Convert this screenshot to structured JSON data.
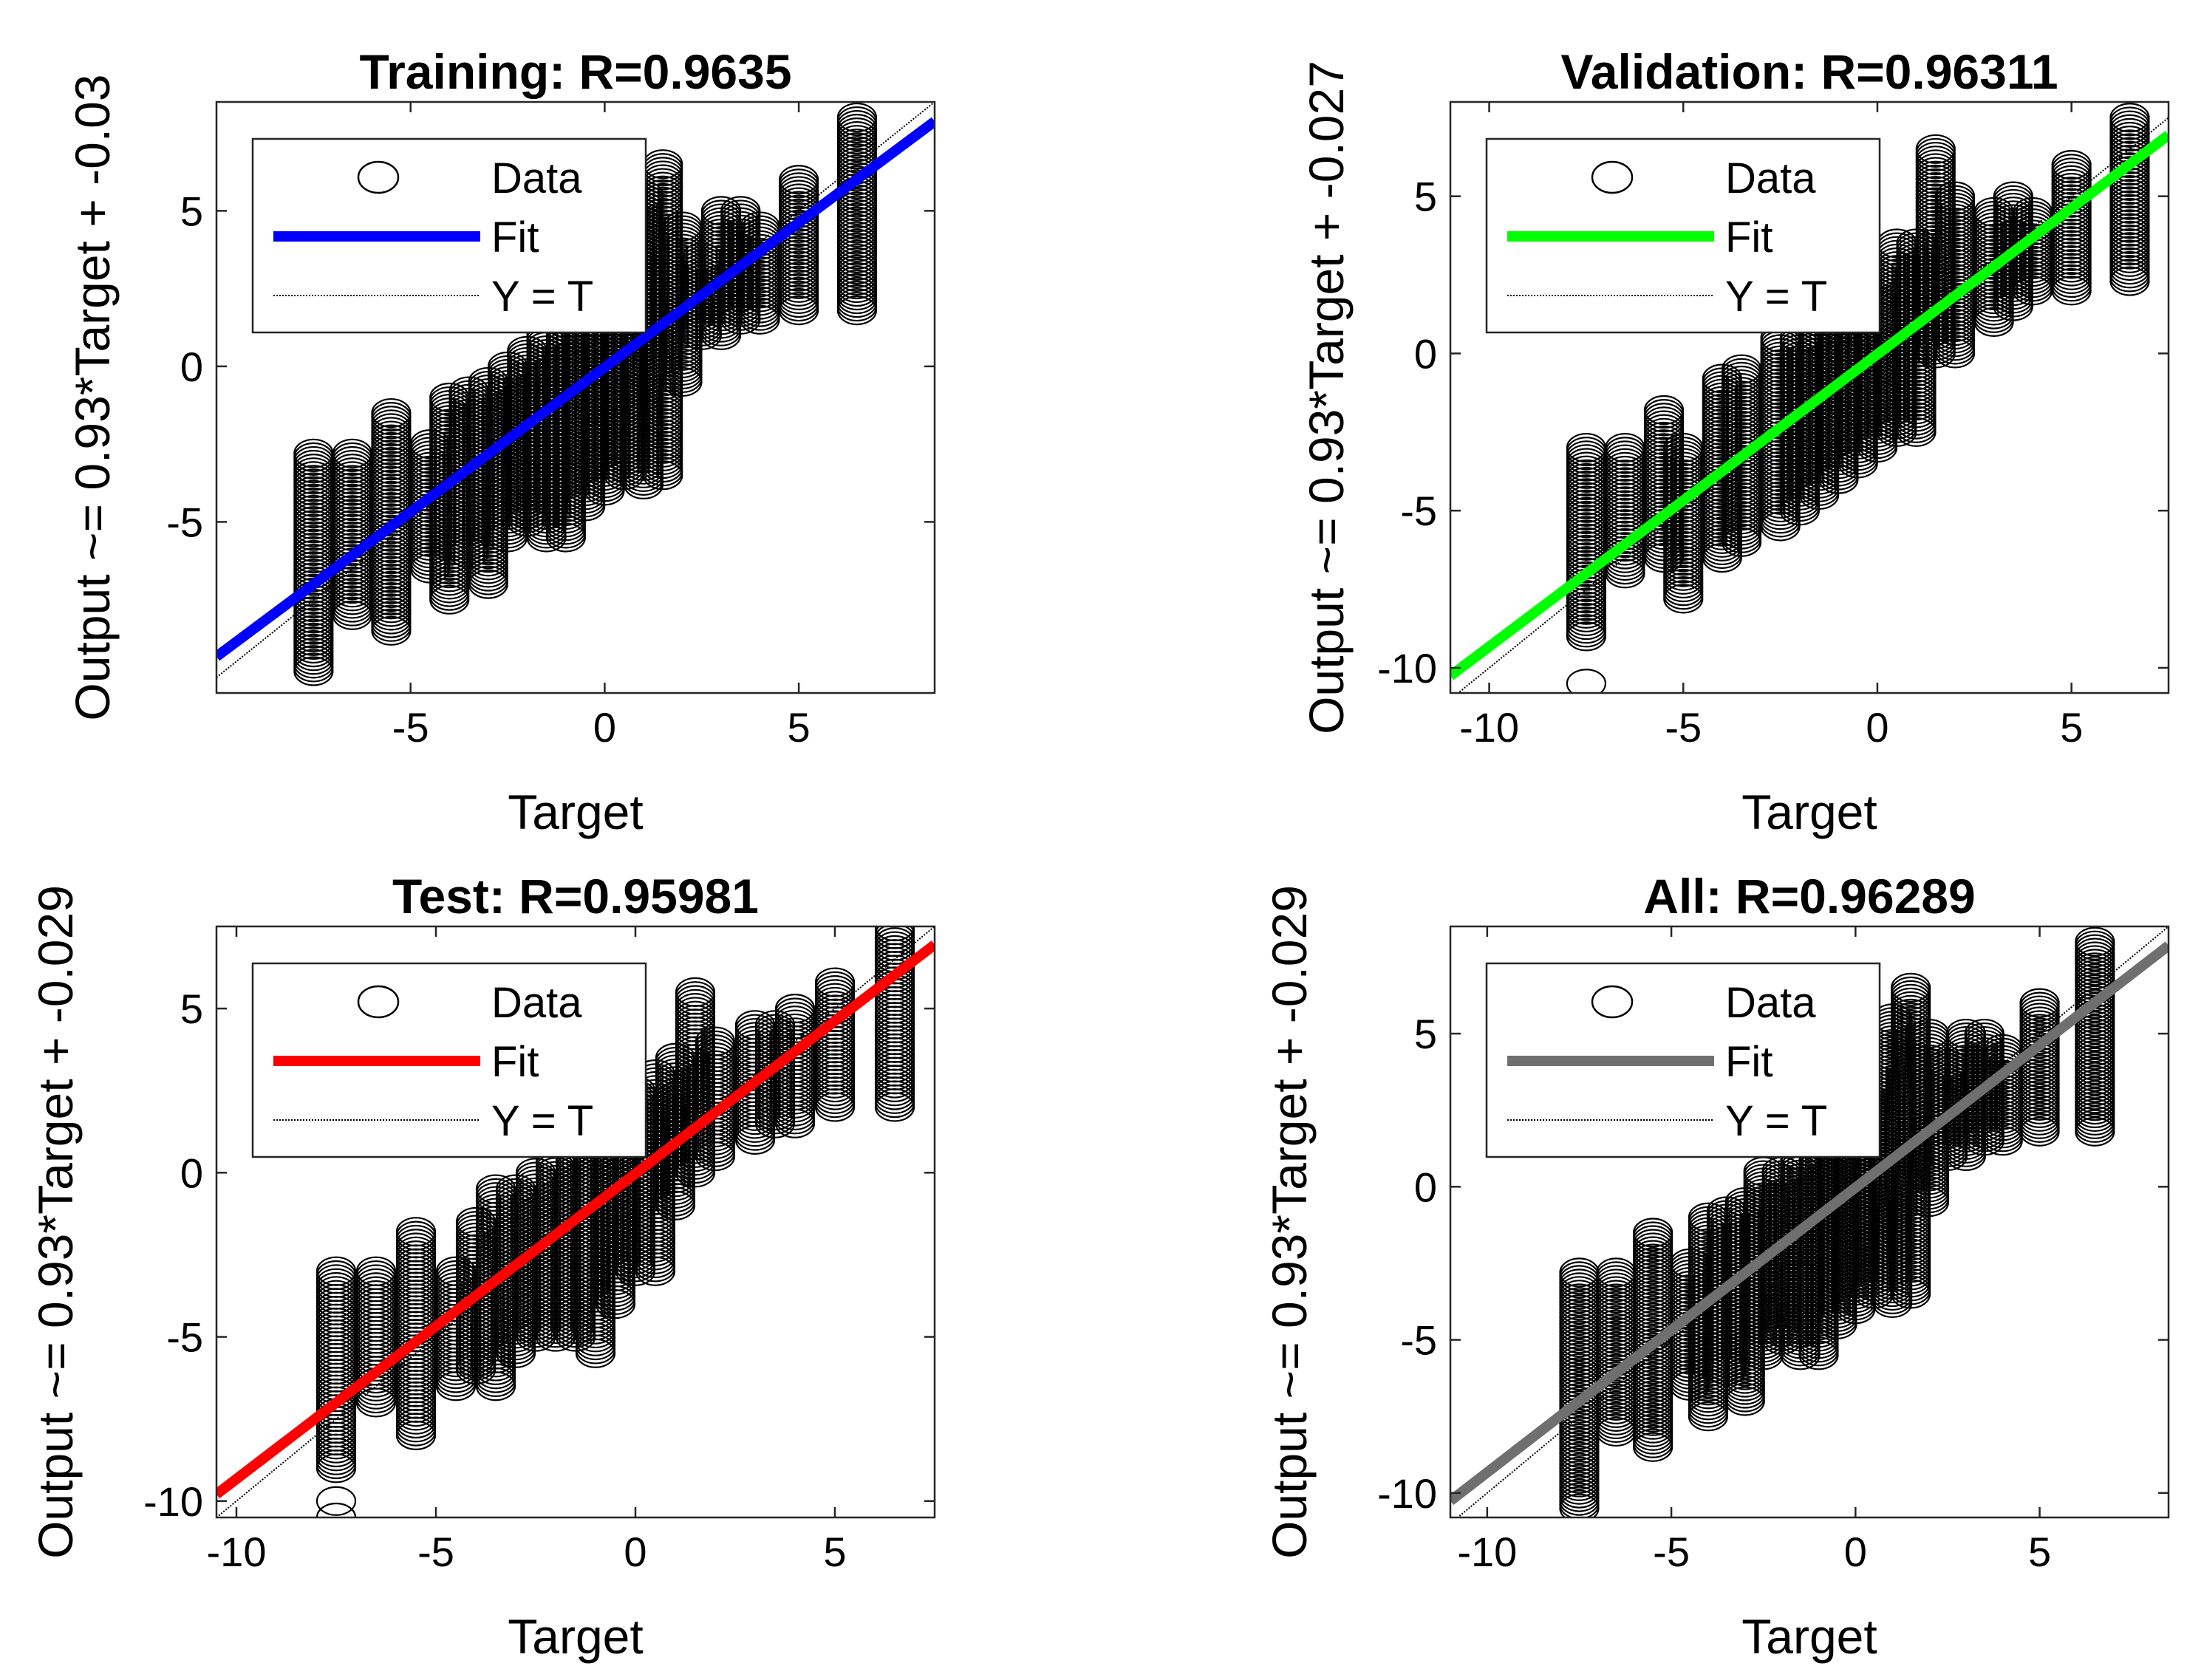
{
  "chart_data": [
    {
      "type": "scatter",
      "title": "Training: R=0.9635",
      "xlabel": "Target",
      "ylabel": "Output ~= 0.93*Target + -0.03",
      "xlim": [
        -10,
        8.5
      ],
      "ylim": [
        -10.5,
        8.5
      ],
      "xticks": [
        -5,
        0,
        5
      ],
      "xtick_labels": [
        "-5",
        "0",
        "5"
      ],
      "yticks": [
        -5,
        0,
        5
      ],
      "ytick_labels": [
        "-5",
        "0",
        "5"
      ],
      "fit": {
        "slope": 0.93,
        "intercept": -0.03,
        "color": "#0000ff"
      },
      "data_columns": [
        {
          "x": -7.5,
          "ymin": -9.8,
          "ymax": -2.8
        },
        {
          "x": -6.5,
          "ymin": -8.0,
          "ymax": -2.8
        },
        {
          "x": -5.5,
          "ymin": -8.5,
          "ymax": -1.5
        },
        {
          "x": -4.5,
          "ymin": -6.5,
          "ymax": -2.5
        },
        {
          "x": -4.0,
          "ymin": -7.5,
          "ymax": -1.0
        },
        {
          "x": -3.5,
          "ymin": -6.0,
          "ymax": -0.8
        },
        {
          "x": -3.0,
          "ymin": -7.0,
          "ymax": -0.5
        },
        {
          "x": -2.5,
          "ymin": -5.5,
          "ymax": 0.0
        },
        {
          "x": -2.0,
          "ymin": -5.0,
          "ymax": 0.5
        },
        {
          "x": -1.5,
          "ymin": -5.5,
          "ymax": 1.0
        },
        {
          "x": -1.0,
          "ymin": -5.5,
          "ymax": 1.5
        },
        {
          "x": -0.5,
          "ymin": -4.5,
          "ymax": 2.0
        },
        {
          "x": 0.0,
          "ymin": -4.0,
          "ymax": 2.5
        },
        {
          "x": 0.5,
          "ymin": -3.5,
          "ymax": 3.0
        },
        {
          "x": 1.0,
          "ymin": -3.8,
          "ymax": 5.5
        },
        {
          "x": 1.5,
          "ymin": -3.5,
          "ymax": 6.5
        },
        {
          "x": 2.0,
          "ymin": -0.5,
          "ymax": 4.5
        },
        {
          "x": 2.5,
          "ymin": 1.0,
          "ymax": 3.5
        },
        {
          "x": 3.0,
          "ymin": 1.0,
          "ymax": 5.0
        },
        {
          "x": 3.5,
          "ymin": 1.5,
          "ymax": 5.0
        },
        {
          "x": 4.0,
          "ymin": 1.5,
          "ymax": 4.5
        },
        {
          "x": 5.0,
          "ymin": 1.8,
          "ymax": 6.0
        },
        {
          "x": 6.5,
          "ymin": 1.8,
          "ymax": 8.0
        }
      ],
      "legend": {
        "position": "top-left",
        "entries": [
          "Data",
          "Fit",
          "Y = T"
        ]
      }
    },
    {
      "type": "scatter",
      "title": "Validation: R=0.96311",
      "xlabel": "Target",
      "ylabel": "Output ~= 0.93*Target + -0.027",
      "xlim": [
        -11,
        7.5
      ],
      "ylim": [
        -10.8,
        8.0
      ],
      "xticks": [
        -10,
        -5,
        0,
        5
      ],
      "xtick_labels": [
        "-10",
        "-5",
        "0",
        "5"
      ],
      "yticks": [
        -10,
        -5,
        0,
        5
      ],
      "ytick_labels": [
        "-10",
        "-5",
        "0",
        "5"
      ],
      "fit": {
        "slope": 0.93,
        "intercept": -0.027,
        "color": "#00ff00"
      },
      "data_columns": [
        {
          "x": -7.5,
          "ymin": -9.0,
          "ymax": -3.0
        },
        {
          "x": -6.5,
          "ymin": -7.0,
          "ymax": -3.0
        },
        {
          "x": -5.5,
          "ymin": -6.5,
          "ymax": -1.8
        },
        {
          "x": -5.0,
          "ymin": -7.8,
          "ymax": -3.0
        },
        {
          "x": -4.0,
          "ymin": -6.5,
          "ymax": -0.8
        },
        {
          "x": -3.5,
          "ymin": -6.0,
          "ymax": -0.5
        },
        {
          "x": -2.5,
          "ymin": -5.5,
          "ymax": 0.5
        },
        {
          "x": -2.0,
          "ymin": -5.0,
          "ymax": 0.5
        },
        {
          "x": -1.5,
          "ymin": -4.5,
          "ymax": 1.0
        },
        {
          "x": -1.0,
          "ymin": -4.0,
          "ymax": 1.5
        },
        {
          "x": -0.5,
          "ymin": -3.5,
          "ymax": 2.0
        },
        {
          "x": 0.0,
          "ymin": -3.0,
          "ymax": 2.5
        },
        {
          "x": 0.5,
          "ymin": -2.5,
          "ymax": 3.5
        },
        {
          "x": 1.0,
          "ymin": -2.5,
          "ymax": 3.5
        },
        {
          "x": 1.5,
          "ymin": 0.0,
          "ymax": 6.5
        },
        {
          "x": 2.0,
          "ymin": 0.0,
          "ymax": 5.0
        },
        {
          "x": 3.0,
          "ymin": 1.0,
          "ymax": 4.5
        },
        {
          "x": 3.5,
          "ymin": 1.5,
          "ymax": 5.0
        },
        {
          "x": 4.0,
          "ymin": 2.0,
          "ymax": 4.5
        },
        {
          "x": 5.0,
          "ymin": 2.0,
          "ymax": 6.0
        },
        {
          "x": 6.5,
          "ymin": 2.3,
          "ymax": 7.5
        }
      ],
      "extra_points": [
        {
          "x": -7.5,
          "y": -10.5
        }
      ],
      "legend": {
        "position": "top-left",
        "entries": [
          "Data",
          "Fit",
          "Y = T"
        ]
      }
    },
    {
      "type": "scatter",
      "title": "Test: R=0.95981",
      "xlabel": "Target",
      "ylabel": "Output ~= 0.93*Target + -0.029",
      "xlim": [
        -10.5,
        7.5
      ],
      "ylim": [
        -10.5,
        7.5
      ],
      "xticks": [
        -10,
        -5,
        0,
        5
      ],
      "xtick_labels": [
        "-10",
        "-5",
        "0",
        "5"
      ],
      "yticks": [
        -10,
        -5,
        0,
        5
      ],
      "ytick_labels": [
        "-10",
        "-5",
        "0",
        "5"
      ],
      "fit": {
        "slope": 0.93,
        "intercept": -0.029,
        "color": "#ff0000"
      },
      "data_columns": [
        {
          "x": -7.5,
          "ymin": -9.0,
          "ymax": -3.0
        },
        {
          "x": -6.5,
          "ymin": -7.0,
          "ymax": -3.0
        },
        {
          "x": -5.5,
          "ymin": -8.0,
          "ymax": -1.8
        },
        {
          "x": -4.5,
          "ymin": -6.5,
          "ymax": -3.0
        },
        {
          "x": -4.0,
          "ymin": -6.0,
          "ymax": -1.5
        },
        {
          "x": -3.5,
          "ymin": -6.5,
          "ymax": -0.5
        },
        {
          "x": -3.0,
          "ymin": -5.5,
          "ymax": -0.5
        },
        {
          "x": -2.5,
          "ymin": -5.0,
          "ymax": 0.0
        },
        {
          "x": -2.0,
          "ymin": -5.0,
          "ymax": 0.5
        },
        {
          "x": -1.5,
          "ymin": -5.0,
          "ymax": 1.0
        },
        {
          "x": -1.0,
          "ymin": -5.5,
          "ymax": 1.5
        },
        {
          "x": -0.5,
          "ymin": -4.0,
          "ymax": 2.0
        },
        {
          "x": 0.0,
          "ymin": -3.0,
          "ymax": 2.5
        },
        {
          "x": 0.5,
          "ymin": -3.0,
          "ymax": 3.0
        },
        {
          "x": 1.0,
          "ymin": -1.0,
          "ymax": 3.5
        },
        {
          "x": 1.5,
          "ymin": 0.0,
          "ymax": 5.5
        },
        {
          "x": 2.0,
          "ymin": 0.5,
          "ymax": 4.0
        },
        {
          "x": 3.0,
          "ymin": 1.0,
          "ymax": 4.5
        },
        {
          "x": 3.5,
          "ymin": 1.5,
          "ymax": 4.5
        },
        {
          "x": 4.0,
          "ymin": 1.5,
          "ymax": 5.0
        },
        {
          "x": 5.0,
          "ymin": 2.0,
          "ymax": 5.8
        },
        {
          "x": 6.5,
          "ymin": 2.0,
          "ymax": 7.5
        }
      ],
      "extra_points": [
        {
          "x": -7.5,
          "y": -10.0
        },
        {
          "x": -7.5,
          "y": -10.5
        }
      ],
      "legend": {
        "position": "top-left",
        "entries": [
          "Data",
          "Fit",
          "Y = T"
        ]
      }
    },
    {
      "type": "scatter",
      "title": "All: R=0.96289",
      "xlabel": "Target",
      "ylabel": "Output ~= 0.93*Target + -0.029",
      "xlim": [
        -11,
        8.5
      ],
      "ylim": [
        -10.8,
        8.5
      ],
      "xticks": [
        -10,
        -5,
        0,
        5
      ],
      "xtick_labels": [
        "-10",
        "-5",
        "0",
        "5"
      ],
      "yticks": [
        -10,
        -5,
        0,
        5
      ],
      "ytick_labels": [
        "-10",
        "-5",
        "0",
        "5"
      ],
      "fit": {
        "slope": 0.93,
        "intercept": -0.029,
        "color": "#6f6f6f"
      },
      "data_columns": [
        {
          "x": -7.5,
          "ymin": -10.5,
          "ymax": -2.8
        },
        {
          "x": -6.5,
          "ymin": -8.0,
          "ymax": -2.8
        },
        {
          "x": -5.5,
          "ymin": -8.5,
          "ymax": -1.5
        },
        {
          "x": -4.5,
          "ymin": -6.5,
          "ymax": -2.5
        },
        {
          "x": -4.0,
          "ymin": -7.5,
          "ymax": -1.0
        },
        {
          "x": -3.5,
          "ymin": -6.0,
          "ymax": -0.8
        },
        {
          "x": -3.0,
          "ymin": -7.0,
          "ymax": -0.5
        },
        {
          "x": -2.5,
          "ymin": -5.5,
          "ymax": 0.5
        },
        {
          "x": -2.0,
          "ymin": -5.0,
          "ymax": 0.5
        },
        {
          "x": -1.5,
          "ymin": -5.5,
          "ymax": 1.0
        },
        {
          "x": -1.0,
          "ymin": -5.5,
          "ymax": 1.5
        },
        {
          "x": -0.5,
          "ymin": -4.5,
          "ymax": 2.0
        },
        {
          "x": 0.0,
          "ymin": -4.0,
          "ymax": 2.5
        },
        {
          "x": 0.5,
          "ymin": -3.5,
          "ymax": 3.5
        },
        {
          "x": 1.0,
          "ymin": -3.8,
          "ymax": 5.5
        },
        {
          "x": 1.5,
          "ymin": -3.5,
          "ymax": 6.5
        },
        {
          "x": 2.0,
          "ymin": -0.5,
          "ymax": 5.0
        },
        {
          "x": 2.5,
          "ymin": 1.0,
          "ymax": 4.0
        },
        {
          "x": 3.0,
          "ymin": 1.0,
          "ymax": 5.0
        },
        {
          "x": 3.5,
          "ymin": 1.5,
          "ymax": 5.0
        },
        {
          "x": 4.0,
          "ymin": 1.5,
          "ymax": 4.5
        },
        {
          "x": 5.0,
          "ymin": 1.8,
          "ymax": 6.0
        },
        {
          "x": 6.5,
          "ymin": 1.8,
          "ymax": 8.0
        }
      ],
      "legend": {
        "position": "top-left",
        "entries": [
          "Data",
          "Fit",
          "Y = T"
        ]
      }
    }
  ]
}
